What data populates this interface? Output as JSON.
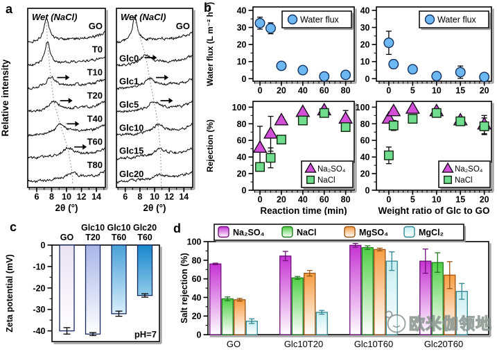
{
  "figure": {
    "panel_labels": {
      "a": "a",
      "b": "b",
      "c": "c",
      "d": "d"
    },
    "watermark": {
      "text": "欧米伽领地"
    },
    "background": "#ffffff"
  },
  "chart_data": [
    {
      "id": "a-left",
      "type": "line",
      "title": "Wet (NaCl)",
      "xlabel": "2θ (°)",
      "ylabel": "Relative intensity",
      "xlim": [
        4.8,
        15.2
      ],
      "xticks": [
        6,
        8,
        10,
        12,
        14
      ],
      "xminor_step": 1,
      "curves": [
        {
          "label": "GO",
          "peak_2theta": 7.3,
          "peak_height": 1.0,
          "arrow": false
        },
        {
          "label": "T0",
          "peak_2theta": 7.45,
          "peak_height": 0.95,
          "arrow": false
        },
        {
          "label": "T10",
          "peak_2theta": 7.9,
          "peak_height": 0.42,
          "arrow": true
        },
        {
          "label": "T20",
          "peak_2theta": 8.3,
          "peak_height": 0.4,
          "arrow": true
        },
        {
          "label": "T40",
          "peak_2theta": 9.2,
          "peak_height": 0.36,
          "arrow": true
        },
        {
          "label": "T60",
          "peak_2theta": 10.2,
          "peak_height": 0.32,
          "arrow": true
        },
        {
          "label": "T80",
          "peak_2theta": 10.8,
          "peak_height": 0.22,
          "arrow": false
        }
      ]
    },
    {
      "id": "a-right",
      "type": "line",
      "title": "Wet (NaCl)",
      "xlabel": "2θ (°)",
      "xlim": [
        4.8,
        15.2
      ],
      "xticks": [
        6,
        8,
        10,
        12,
        14
      ],
      "xminor_step": 1,
      "curves": [
        {
          "label": "GO",
          "peak_2theta": 7.3,
          "peak_height": 1.0,
          "arrow": true,
          "arrow_below": true,
          "label_side": "right"
        },
        {
          "label": "Glc0",
          "peak_2theta": 8.8,
          "peak_height": 0.36,
          "arrow": false
        },
        {
          "label": "Glc1",
          "peak_2theta": 9.35,
          "peak_height": 0.34,
          "arrow": true
        },
        {
          "label": "Glc5",
          "peak_2theta": 9.95,
          "peak_height": 0.34,
          "arrow": true
        },
        {
          "label": "Glc10",
          "peak_2theta": 10.5,
          "peak_height": 0.32,
          "arrow": false
        },
        {
          "label": "Glc15",
          "peak_2theta": 10.8,
          "peak_height": 0.26,
          "arrow": false
        },
        {
          "label": "Glc20",
          "peak_2theta": 10.9,
          "peak_height": 0.14,
          "arrow": false
        }
      ]
    },
    {
      "id": "b-flux-time",
      "type": "scatter",
      "ylabel": "Water flux (L m⁻² h⁻¹)",
      "xlim": [
        -6.5,
        88
      ],
      "ylim": [
        -1.5,
        42
      ],
      "xticks": [
        0,
        20,
        40,
        60,
        80
      ],
      "xminor_step": 5,
      "yticks": [
        0,
        10,
        20,
        30,
        40
      ],
      "yminor_step": 5,
      "legend": {
        "position": "top-right",
        "items": [
          "Water flux"
        ]
      },
      "series": [
        {
          "name": "Water flux",
          "marker": "circle",
          "color": "#6db7f2",
          "edge": "#13315f",
          "x": [
            0,
            10,
            20,
            40,
            60,
            80
          ],
          "y": [
            32.5,
            29.5,
            7.5,
            5,
            1.3,
            2.2
          ],
          "err": [
            3.5,
            3.2,
            1,
            0.8,
            2,
            1.5
          ]
        }
      ]
    },
    {
      "id": "b-flux-ratio",
      "type": "scatter",
      "xlim": [
        -2.6,
        21.5
      ],
      "ylim": [
        -1.5,
        42
      ],
      "xticks": [
        0,
        5,
        10,
        15,
        20
      ],
      "xminor_step": 1,
      "yticks": [
        0,
        10,
        20,
        30,
        40
      ],
      "yminor_step": 5,
      "legend": {
        "position": "top-right",
        "items": [
          "Water flux"
        ]
      },
      "series": [
        {
          "name": "Water flux",
          "marker": "circle",
          "color": "#6db7f2",
          "edge": "#13315f",
          "x": [
            0,
            1,
            5,
            10,
            15,
            20
          ],
          "y": [
            21,
            8.5,
            5.5,
            1.5,
            3.8,
            1
          ],
          "err": [
            6.8,
            2.5,
            1.3,
            1,
            3.6,
            1.4
          ]
        }
      ]
    },
    {
      "id": "b-rej-time",
      "type": "scatter",
      "xlabel": "Reaction time (min)",
      "ylabel": "Rejection (%)",
      "xlim": [
        -6.5,
        88
      ],
      "ylim": [
        0,
        107
      ],
      "xticks": [
        0,
        20,
        40,
        60,
        80
      ],
      "xminor_step": 5,
      "yticks": [
        0,
        20,
        40,
        60,
        80,
        100
      ],
      "yminor_step": 10,
      "legend": {
        "position": "bottom-right",
        "items": [
          "Na₂SO₄",
          "NaCl"
        ]
      },
      "series": [
        {
          "name": "Na₂SO₄",
          "marker": "triangle",
          "color": "#d44fd8",
          "edge": "#1a0a1e",
          "x": [
            0,
            10,
            20,
            40,
            60,
            80
          ],
          "y": [
            51,
            68,
            84,
            94,
            96,
            86
          ],
          "err": [
            26,
            21,
            4,
            3,
            3,
            10
          ]
        },
        {
          "name": "NaCl",
          "marker": "square",
          "color": "#6fdd8d",
          "edge": "#10240f",
          "x": [
            0,
            10,
            20,
            40,
            60,
            80
          ],
          "y": [
            28,
            39,
            61,
            84,
            93,
            76
          ],
          "err": [
            5,
            12,
            3,
            2,
            3,
            4
          ]
        }
      ]
    },
    {
      "id": "b-rej-ratio",
      "type": "scatter",
      "xlabel": "Weight ratio of Glc to GO",
      "xlim": [
        -2.6,
        21.5
      ],
      "ylim": [
        0,
        107
      ],
      "xticks": [
        0,
        5,
        10,
        15,
        20
      ],
      "xminor_step": 1,
      "yticks": [
        0,
        20,
        40,
        60,
        80,
        100
      ],
      "yminor_step": 10,
      "legend": {
        "position": "bottom-right",
        "items": [
          "Na₂SO₄",
          "NaCl"
        ]
      },
      "series": [
        {
          "name": "Na₂SO₄",
          "marker": "triangle",
          "color": "#d44fd8",
          "edge": "#1a0a1e",
          "x": [
            0,
            1,
            5,
            10,
            15,
            20
          ],
          "y": [
            86,
            95,
            98,
            95,
            84,
            79
          ],
          "err": [
            4,
            4,
            2.5,
            3,
            4,
            11
          ]
        },
        {
          "name": "NaCl",
          "marker": "square",
          "color": "#6fdd8d",
          "edge": "#10240f",
          "x": [
            0,
            1,
            5,
            10,
            15,
            20
          ],
          "y": [
            42,
            78,
            86,
            93,
            83,
            77
          ],
          "err": [
            10,
            6,
            2,
            3,
            3,
            10
          ]
        }
      ]
    },
    {
      "id": "c-zeta",
      "type": "bar",
      "ylabel": "Zeta potential (mV)",
      "annotation": "pH=7",
      "ylim": [
        -45,
        0
      ],
      "yticks": [
        0,
        -10,
        -20,
        -30,
        -40
      ],
      "yminor_step": 5,
      "categories": [
        [
          "GO"
        ],
        [
          "Glc10",
          "T20"
        ],
        [
          "Glc10",
          "T60"
        ],
        [
          "Glc20",
          "T60"
        ]
      ],
      "values": [
        -40,
        -41.5,
        -32,
        -23.5
      ],
      "errors": [
        1.5,
        0.7,
        1.2,
        0.8
      ],
      "bar_top_colors": [
        "#eae2f3",
        "#a9b6e8",
        "#49a0d8",
        "#1987cd"
      ],
      "bar_bottom_colors": [
        "#ffffff",
        "#ffffff",
        "#d9effb",
        "#8fcbe9"
      ],
      "edge": "#15265d"
    },
    {
      "id": "d-salt",
      "type": "grouped-bar",
      "ylabel": "Salt rejection (%)",
      "ylim": [
        0,
        100
      ],
      "yticks": [
        0,
        20,
        40,
        60,
        80,
        100
      ],
      "yminor_step": 10,
      "categories": [
        "GO",
        "Glc10T20",
        "Glc10T60",
        "Glc20T60"
      ],
      "legend_position": "top",
      "series": [
        {
          "name": "Na₂SO₄",
          "color": "#c633d3",
          "edge": "#70117a",
          "values": [
            76,
            84.5,
            96,
            79
          ],
          "errors": [
            0.8,
            5,
            2,
            13
          ]
        },
        {
          "name": "NaCl",
          "color": "#4fcf45",
          "edge": "#1d7a1d",
          "values": [
            38.5,
            61,
            93.5,
            77.5
          ],
          "errors": [
            2,
            1.5,
            2,
            10.5
          ]
        },
        {
          "name": "MgSO₄",
          "color": "#f79d42",
          "edge": "#9c5410",
          "values": [
            37.5,
            66,
            91.5,
            64
          ],
          "errors": [
            1.5,
            3,
            1.5,
            14.5
          ]
        },
        {
          "name": "MgCl₂",
          "color": "#c6eef1",
          "edge": "#2f8691",
          "values": [
            14.5,
            24,
            79,
            46.5
          ],
          "errors": [
            2.5,
            2,
            10,
            8.5
          ]
        }
      ]
    }
  ]
}
